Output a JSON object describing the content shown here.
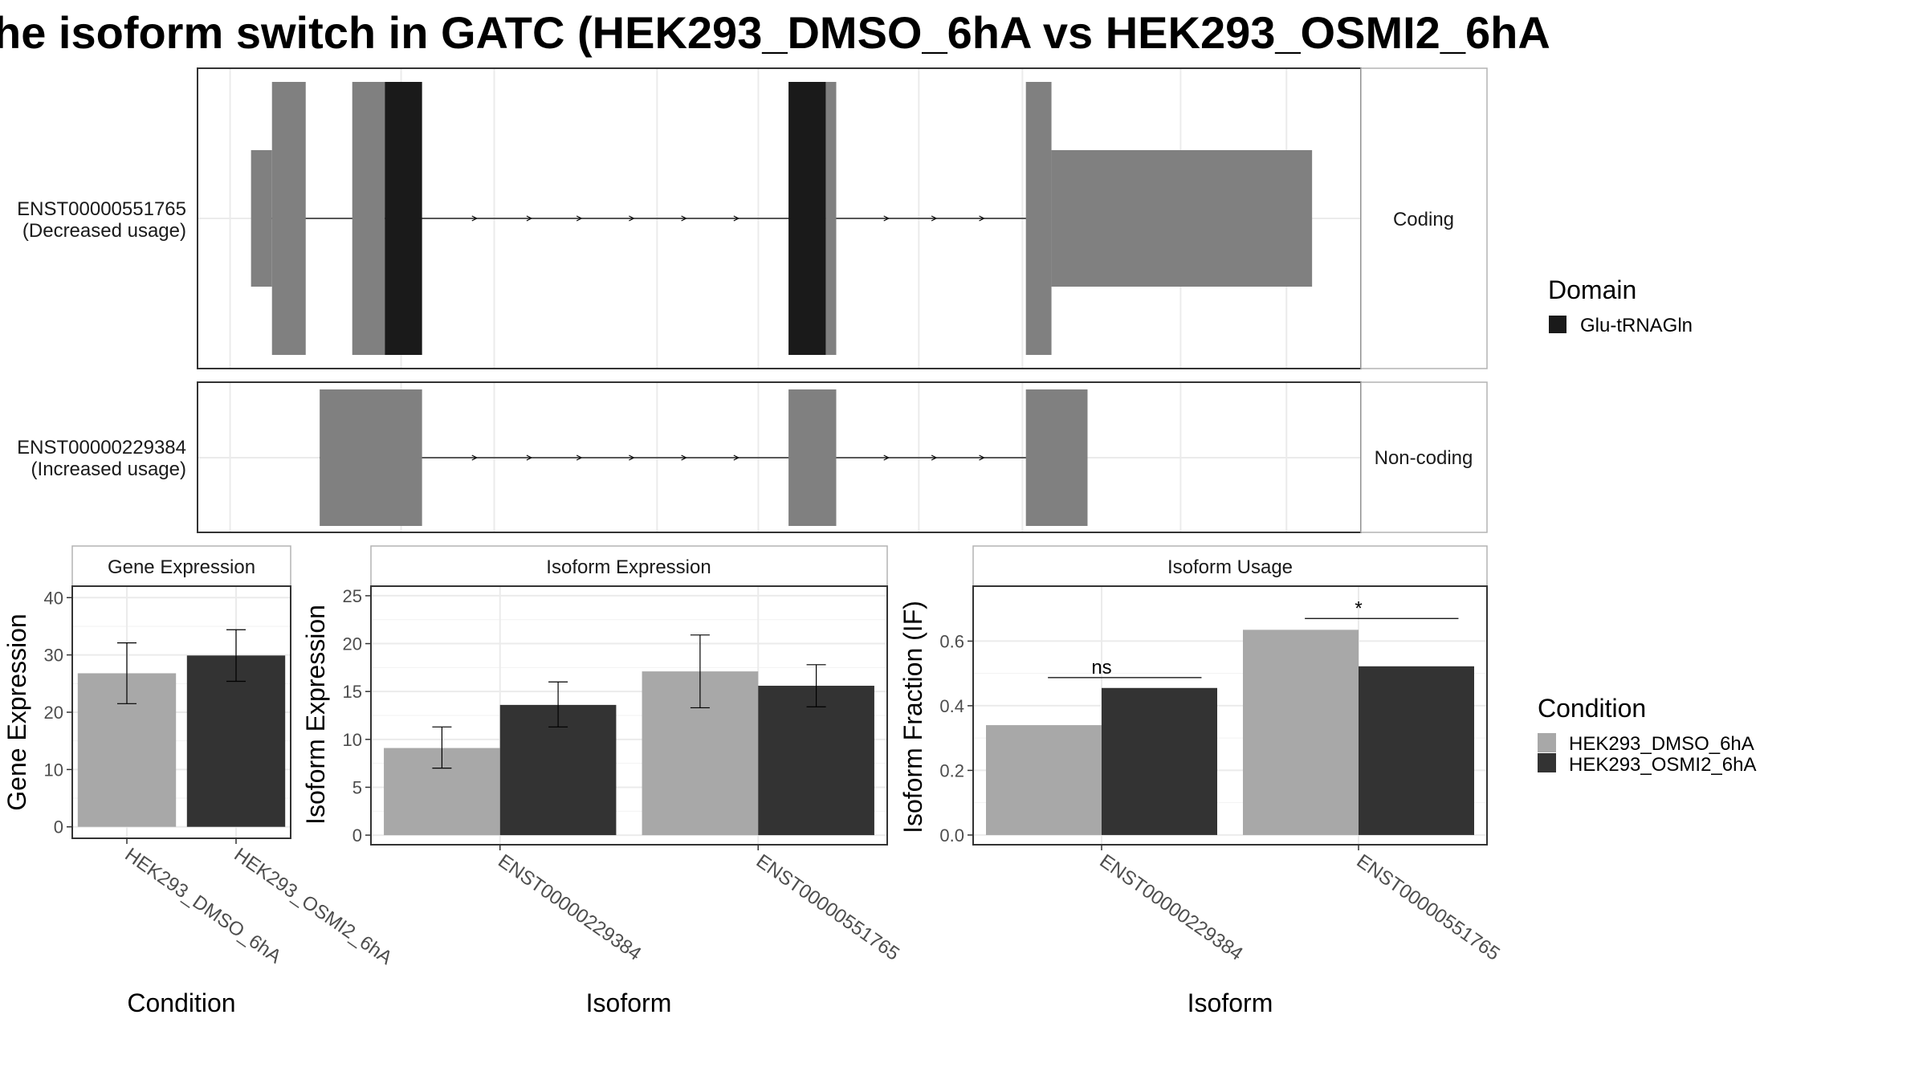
{
  "title": "he isoform switch in GATC (HEK293_DMSO_6hA vs HEK293_OSMI2_6hA",
  "colors": {
    "exon": "#808080",
    "domain": "#1a1a1a",
    "dmso": "#a8a8a8",
    "osmi": "#333333",
    "grid": "#ebebeb",
    "panel_border": "#333333",
    "strip_border": "#b3b3b3"
  },
  "transcript_panel": {
    "coord_range": [
      0,
      1000
    ],
    "transcripts": [
      {
        "id": "ENST00000551765",
        "usage": "(Decreased usage)",
        "category": "Coding",
        "intron_span": [
          60,
          725
        ],
        "exons": [
          {
            "start": 46,
            "end": 64,
            "coding": false
          },
          {
            "start": 64,
            "end": 93,
            "coding": true
          },
          {
            "start": 133,
            "end": 161,
            "coding": true
          },
          {
            "start": 161,
            "end": 193,
            "coding": true,
            "domain": true
          },
          {
            "start": 508,
            "end": 540,
            "coding": true,
            "domain": true
          },
          {
            "start": 540,
            "end": 549,
            "coding": true
          },
          {
            "start": 712,
            "end": 734,
            "coding": true
          },
          {
            "start": 734,
            "end": 958,
            "coding": false
          }
        ],
        "arrows": [
          240,
          287,
          330,
          375,
          420,
          465,
          594,
          635,
          676,
          719
        ]
      },
      {
        "id": "ENST00000229384",
        "usage": "(Increased usage)",
        "category": "Non-coding",
        "intron_span": [
          105,
          725
        ],
        "exons": [
          {
            "start": 105,
            "end": 193,
            "coding": false
          },
          {
            "start": 508,
            "end": 549,
            "coding": false
          },
          {
            "start": 712,
            "end": 765,
            "coding": false
          }
        ],
        "arrows": [
          240,
          287,
          330,
          375,
          420,
          465,
          594,
          635,
          676,
          719
        ]
      }
    ]
  },
  "domain_legend": {
    "title": "Domain",
    "items": [
      {
        "label": "Glu-tRNAGln",
        "color": "#1a1a1a"
      }
    ]
  },
  "condition_legend": {
    "title": "Condition",
    "items": [
      {
        "label": "HEK293_DMSO_6hA",
        "color": "#a8a8a8"
      },
      {
        "label": "HEK293_OSMI2_6hA",
        "color": "#333333"
      }
    ]
  },
  "chart_data": [
    {
      "type": "bar",
      "title": "Gene Expression",
      "xlabel": "Condition",
      "ylabel": "Gene Expression",
      "ylim": [
        -2,
        42
      ],
      "yticks": [
        0,
        10,
        20,
        30,
        40
      ],
      "categories": [
        "HEK293_DMSO_6hA",
        "HEK293_OSMI2_6hA"
      ],
      "values": [
        26.8,
        29.9
      ],
      "error_low": [
        21.5,
        25.4
      ],
      "error_high": [
        32.1,
        34.4
      ],
      "colors": [
        "#a8a8a8",
        "#333333"
      ]
    },
    {
      "type": "bar",
      "title": "Isoform Expression",
      "xlabel": "Isoform",
      "ylabel": "Isoform Expression",
      "ylim": [
        -1,
        26
      ],
      "yticks": [
        0,
        5,
        10,
        15,
        20,
        25
      ],
      "categories": [
        "ENST00000229384",
        "ENST00000551765"
      ],
      "series": [
        {
          "name": "HEK293_DMSO_6hA",
          "values": [
            9.1,
            17.1
          ],
          "error_low": [
            7.0,
            13.3
          ],
          "error_high": [
            11.3,
            20.9
          ]
        },
        {
          "name": "HEK293_OSMI2_6hA",
          "values": [
            13.6,
            15.6
          ],
          "error_low": [
            11.3,
            13.4
          ],
          "error_high": [
            16.0,
            17.8
          ]
        }
      ]
    },
    {
      "type": "bar",
      "title": "Isoform Usage",
      "xlabel": "Isoform",
      "ylabel": "Isoform Fraction (IF)",
      "ylim": [
        -0.03,
        0.77
      ],
      "yticks": [
        0.0,
        0.2,
        0.4,
        0.6
      ],
      "ytick_labels": [
        "0.0",
        "0.2",
        "0.4",
        "0.6"
      ],
      "categories": [
        "ENST00000229384",
        "ENST00000551765"
      ],
      "series": [
        {
          "name": "HEK293_DMSO_6hA",
          "values": [
            0.34,
            0.635
          ]
        },
        {
          "name": "HEK293_OSMI2_6hA",
          "values": [
            0.455,
            0.522
          ]
        }
      ],
      "significance": [
        {
          "label": "ns",
          "y": 0.487
        },
        {
          "label": "*",
          "y": 0.67
        }
      ]
    }
  ]
}
